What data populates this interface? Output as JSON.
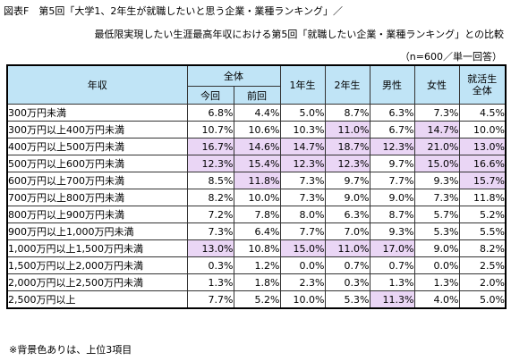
{
  "title": "図表F　第5回「大学1、2年生が就職したいと思う企業・業種ランキング」／",
  "subtitle": "最低限実現したい生涯最高年収における第5回「就職したい企業・業種ランキング」との比較",
  "note": "（n=600／単一回答）",
  "footnote": "※背景色ありは、上位3項目",
  "highlight_color": "#ead6f5",
  "header_color": "#c0e4f6",
  "chart_data": {
    "type": "table",
    "row_header": "年収",
    "group_header": "全体",
    "columns": [
      "今回",
      "前回",
      "1年生",
      "2年生",
      "男性",
      "女性",
      "就活生全体"
    ],
    "rows": [
      {
        "label": "300万円未満",
        "values": [
          "6.8%",
          "4.4%",
          "5.0%",
          "8.7%",
          "6.3%",
          "7.3%",
          "4.5%"
        ],
        "highlight": [
          false,
          false,
          false,
          false,
          false,
          false,
          false
        ]
      },
      {
        "label": "300万円以上400万円未満",
        "values": [
          "10.7%",
          "10.6%",
          "10.3%",
          "11.0%",
          "6.7%",
          "14.7%",
          "10.0%"
        ],
        "highlight": [
          false,
          false,
          false,
          true,
          false,
          true,
          false
        ]
      },
      {
        "label": "400万円以上500万円未満",
        "values": [
          "16.7%",
          "14.6%",
          "14.7%",
          "18.7%",
          "12.3%",
          "21.0%",
          "13.0%"
        ],
        "highlight": [
          true,
          true,
          true,
          true,
          true,
          true,
          true
        ]
      },
      {
        "label": "500万円以上600万円未満",
        "values": [
          "12.3%",
          "15.4%",
          "12.3%",
          "12.3%",
          "9.7%",
          "15.0%",
          "16.6%"
        ],
        "highlight": [
          true,
          true,
          true,
          true,
          false,
          true,
          true
        ]
      },
      {
        "label": "600万円以上700万円未満",
        "values": [
          "8.5%",
          "11.8%",
          "7.3%",
          "9.7%",
          "7.7%",
          "9.3%",
          "15.7%"
        ],
        "highlight": [
          false,
          true,
          false,
          false,
          false,
          false,
          true
        ]
      },
      {
        "label": "700万円以上800万円未満",
        "values": [
          "8.2%",
          "10.0%",
          "7.3%",
          "9.0%",
          "9.0%",
          "7.3%",
          "11.8%"
        ],
        "highlight": [
          false,
          false,
          false,
          false,
          false,
          false,
          false
        ]
      },
      {
        "label": "800万円以上900万円未満",
        "values": [
          "7.2%",
          "7.8%",
          "8.0%",
          "6.3%",
          "8.7%",
          "5.7%",
          "5.2%"
        ],
        "highlight": [
          false,
          false,
          false,
          false,
          false,
          false,
          false
        ]
      },
      {
        "label": "900万円以上1,000万円未満",
        "values": [
          "7.3%",
          "6.4%",
          "7.7%",
          "7.0%",
          "9.3%",
          "5.3%",
          "5.5%"
        ],
        "highlight": [
          false,
          false,
          false,
          false,
          false,
          false,
          false
        ]
      },
      {
        "label": "1,000万円以上1,500万円未満",
        "values": [
          "13.0%",
          "10.8%",
          "15.0%",
          "11.0%",
          "17.0%",
          "9.0%",
          "8.2%"
        ],
        "highlight": [
          true,
          false,
          true,
          true,
          true,
          false,
          false
        ]
      },
      {
        "label": "1,500万円以上2,000万円未満",
        "values": [
          "0.3%",
          "1.2%",
          "0.0%",
          "0.7%",
          "0.7%",
          "0.0%",
          "2.5%"
        ],
        "highlight": [
          false,
          false,
          false,
          false,
          false,
          false,
          false
        ]
      },
      {
        "label": "2,000万円以上2,500万円未満",
        "values": [
          "1.3%",
          "1.8%",
          "2.3%",
          "0.3%",
          "1.3%",
          "1.3%",
          "2.0%"
        ],
        "highlight": [
          false,
          false,
          false,
          false,
          false,
          false,
          false
        ]
      },
      {
        "label": "2,500万円以上",
        "values": [
          "7.7%",
          "5.2%",
          "10.0%",
          "5.3%",
          "11.3%",
          "4.0%",
          "5.0%"
        ],
        "highlight": [
          false,
          false,
          false,
          false,
          true,
          false,
          false
        ]
      }
    ]
  }
}
